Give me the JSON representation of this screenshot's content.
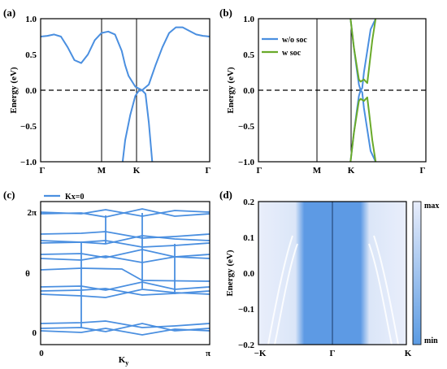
{
  "colors": {
    "wo_soc": "#4a8fe0",
    "w_soc": "#6aaa2a",
    "heat_min": "#5b9be3",
    "heat_max": "#e8edfb"
  },
  "panels": {
    "a": {
      "label": "(a)",
      "ylabel": "Energy (eV)",
      "ylim": [
        -1.0,
        1.0
      ],
      "yticks": [
        "1.0",
        "0.5",
        "0.0",
        "−0.5",
        "−1.0"
      ],
      "xticks": [
        "Γ",
        "M",
        "K",
        "Γ"
      ]
    },
    "b": {
      "label": "(b)",
      "ylabel": "Energy (eV)",
      "ylim": [
        -1.0,
        1.0
      ],
      "yticks": [
        "1.0",
        "0.5",
        "0.0",
        "−0.5",
        "−1.0"
      ],
      "xticks": [
        "Γ",
        "M",
        "K",
        "Γ"
      ],
      "legend": [
        "w/o soc",
        "w soc"
      ]
    },
    "c": {
      "label": "(c)",
      "ylabel": "θ",
      "xlabel_main": "K",
      "xlabel_sub": "y",
      "yticks": [
        "2π",
        "0"
      ],
      "xticks": [
        "0",
        "π"
      ],
      "legend": [
        "Kx=0"
      ]
    },
    "d": {
      "label": "(d)",
      "ylabel": "Energy (eV)",
      "ylim": [
        -0.2,
        0.2
      ],
      "yticks": [
        "0.2",
        "0.1",
        "0.0",
        "−0.1",
        "−0.2"
      ],
      "xticks": [
        "−K",
        "Γ",
        "K"
      ],
      "colorbar": [
        "max",
        "min"
      ]
    }
  },
  "chart_data": [
    {
      "panel": "a",
      "type": "line",
      "ylim": [
        -1.0,
        1.0
      ],
      "x_ticks": [
        "Γ",
        "M",
        "K",
        "Γ"
      ],
      "series": [
        {
          "x": [
            0,
            0.04,
            0.08,
            0.12,
            0.16,
            0.2,
            0.24,
            0.28,
            0.32,
            0.36,
            0.4,
            0.44,
            0.48,
            0.5,
            0.52,
            0.56,
            0.6,
            0.64,
            0.68,
            0.72,
            0.76,
            0.8,
            0.84,
            0.88,
            0.92,
            0.96,
            1.0
          ],
          "y": [
            0.75,
            0.76,
            0.78,
            0.75,
            0.6,
            0.42,
            0.38,
            0.5,
            0.7,
            0.8,
            0.82,
            0.78,
            0.55,
            0.35,
            0.2,
            0.05,
            0.0,
            0.08,
            0.35,
            0.6,
            0.8,
            0.88,
            0.88,
            0.83,
            0.78,
            0.76,
            0.75
          ]
        },
        {
          "x": [
            0.485,
            0.5,
            0.53,
            0.56,
            0.58,
            0.6,
            0.62,
            0.64,
            0.66
          ],
          "y": [
            -1.0,
            -0.7,
            -0.35,
            -0.08,
            -0.01,
            0.0,
            -0.05,
            -0.45,
            -1.0
          ]
        }
      ]
    },
    {
      "panel": "b",
      "type": "line",
      "ylim": [
        -1.0,
        1.0
      ],
      "x_ticks": [
        "Γ",
        "M",
        "K",
        "Γ"
      ],
      "series": [
        {
          "name": "w/o soc",
          "x": [
            0.55,
            0.57,
            0.59,
            0.6,
            0.61,
            0.62,
            0.63,
            0.65,
            0.67,
            0.7
          ],
          "y": [
            1.0,
            0.6,
            0.25,
            0.08,
            0.0,
            0.03,
            0.25,
            0.55,
            0.85,
            1.0
          ]
        },
        {
          "name": "w soc",
          "x": [
            0.55,
            0.57,
            0.59,
            0.6,
            0.61,
            0.63,
            0.65,
            0.66,
            0.68,
            0.7
          ],
          "y": [
            1.0,
            0.6,
            0.3,
            0.15,
            0.12,
            0.15,
            0.1,
            0.3,
            0.7,
            1.0
          ]
        }
      ]
    },
    {
      "panel": "c",
      "type": "line",
      "x_ticks": [
        "0",
        "π"
      ],
      "y_ticks": [
        "0",
        "2π"
      ],
      "series": [
        {
          "name": "Kx=0"
        }
      ]
    },
    {
      "panel": "d",
      "type": "heatmap",
      "ylim": [
        -0.2,
        0.2
      ],
      "x_ticks": [
        "−K",
        "Γ",
        "K"
      ],
      "colorbar": [
        "max",
        "min"
      ]
    }
  ]
}
